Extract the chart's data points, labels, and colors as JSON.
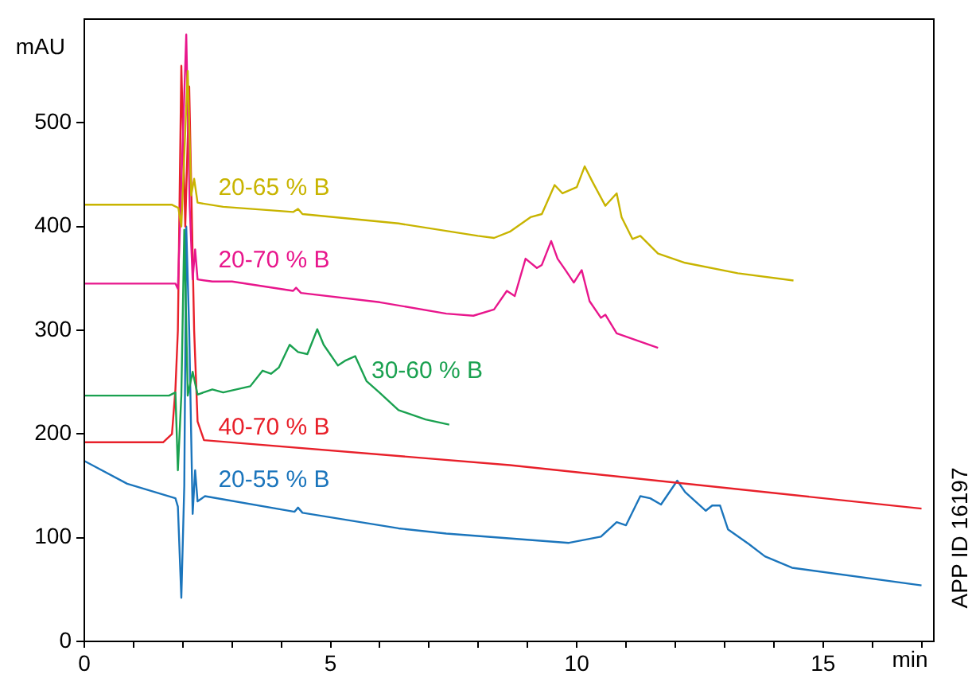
{
  "chart_data": {
    "type": "line",
    "xlabel": "min",
    "ylabel": "mAU",
    "xlim": [
      0,
      17.25
    ],
    "ylim": [
      0,
      600
    ],
    "xticks": [
      0,
      {
        "value": 1,
        "label": null
      },
      {
        "value": 2,
        "label": null
      },
      {
        "value": 3,
        "label": null
      },
      {
        "value": 4,
        "label": null
      },
      5,
      {
        "value": 6,
        "label": null
      },
      {
        "value": 7,
        "label": null
      },
      {
        "value": 8,
        "label": null
      },
      {
        "value": 9,
        "label": null
      },
      10,
      {
        "value": 11,
        "label": null
      },
      {
        "value": 12,
        "label": null
      },
      {
        "value": 13,
        "label": null
      },
      {
        "value": 14,
        "label": null
      },
      15,
      {
        "value": 16,
        "label": null
      },
      {
        "value": 17,
        "label": null
      }
    ],
    "yticks": [
      0,
      100,
      200,
      300,
      400,
      500
    ],
    "grid": false,
    "marker": "none",
    "line_style": "solid",
    "annotations": [
      "APP ID 16197"
    ],
    "series": [
      {
        "name": "20-65 % B",
        "color": "#c8b400",
        "x": [
          0,
          1.78,
          1.91,
          1.97,
          2.1,
          2.17,
          2.23,
          2.3,
          2.82,
          4.24,
          4.34,
          4.43,
          6.38,
          7.99,
          8.32,
          8.64,
          9.06,
          9.29,
          9.55,
          9.71,
          10.0,
          10.16,
          10.32,
          10.58,
          10.81,
          10.91,
          11.13,
          11.29,
          11.65,
          12.2,
          13.27,
          14.4
        ],
        "values": [
          421,
          421,
          418,
          400,
          550,
          430,
          446,
          423,
          419,
          414,
          417,
          412,
          403,
          391,
          389,
          395,
          409,
          412,
          440,
          432,
          438,
          458,
          443,
          420,
          432,
          409,
          388,
          391,
          374,
          365,
          355,
          348
        ]
      },
      {
        "name": "20-70 % B",
        "color": "#e8168c",
        "x": [
          0,
          1.85,
          1.9,
          2.07,
          2.14,
          2.2,
          2.25,
          2.3,
          2.6,
          3.0,
          4.24,
          4.3,
          4.4,
          6.0,
          7.35,
          7.9,
          8.32,
          8.58,
          8.74,
          8.96,
          9.19,
          9.29,
          9.48,
          9.61,
          9.77,
          9.94,
          10.1,
          10.26,
          10.49,
          10.58,
          10.81,
          11.65
        ],
        "values": [
          345,
          345,
          340,
          585,
          420,
          349,
          378,
          349,
          347,
          347,
          338,
          341,
          336,
          327,
          316,
          314,
          320,
          338,
          333,
          369,
          360,
          363,
          386,
          369,
          358,
          346,
          358,
          328,
          312,
          315,
          297,
          283
        ]
      },
      {
        "name": "30-60 % B",
        "color": "#1aa150",
        "x": [
          0,
          1.72,
          1.85,
          1.9,
          1.97,
          2.03,
          2.1,
          2.2,
          2.3,
          2.6,
          2.82,
          3.37,
          3.62,
          3.79,
          3.95,
          4.17,
          4.34,
          4.53,
          4.73,
          4.86,
          5.15,
          5.31,
          5.5,
          5.73,
          5.99,
          6.38,
          6.93,
          7.41
        ],
        "values": [
          237,
          237,
          240,
          165,
          237,
          397,
          237,
          260,
          238,
          243,
          240,
          246,
          261,
          258,
          264,
          286,
          279,
          277,
          301,
          286,
          266,
          271,
          275,
          251,
          240,
          223,
          214,
          209
        ]
      },
      {
        "name": "40-70 % B",
        "color": "#e8202a",
        "x": [
          0,
          1.6,
          1.78,
          1.85,
          1.9,
          1.97,
          2.05,
          2.13,
          2.23,
          2.3,
          2.43,
          8.64,
          17
        ],
        "values": [
          192,
          192,
          200,
          243,
          300,
          555,
          400,
          535,
          300,
          212,
          194,
          170,
          128
        ]
      },
      {
        "name": "20-55 % B",
        "color": "#1b75bc",
        "x": [
          0,
          0.87,
          1.85,
          1.9,
          1.97,
          2.03,
          2.07,
          2.13,
          2.2,
          2.25,
          2.3,
          2.45,
          4.27,
          4.34,
          4.43,
          6.38,
          7.35,
          9.84,
          10.49,
          10.81,
          11.0,
          11.29,
          11.49,
          11.71,
          12.04,
          12.2,
          12.62,
          12.75,
          12.91,
          13.07,
          13.49,
          13.82,
          14.37,
          17
        ],
        "values": [
          174,
          152,
          138,
          130,
          42,
          150,
          400,
          300,
          123,
          165,
          135,
          140,
          125,
          129,
          124,
          109,
          104,
          95,
          101,
          115,
          112,
          140,
          138,
          132,
          155,
          144,
          126,
          131,
          131,
          108,
          94,
          82,
          71,
          54
        ]
      }
    ]
  }
}
